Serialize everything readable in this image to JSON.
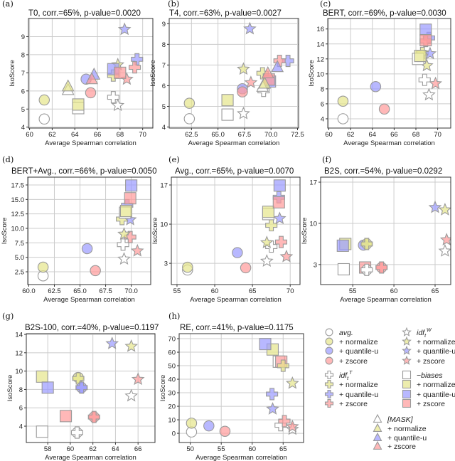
{
  "colors": {
    "none": "#ffffff",
    "normalize": "#e6e68a",
    "quantile-u": "#9a9aff",
    "zscore": "#ff9a9a",
    "edge": "#9a9a9a",
    "grid": "#cccccc"
  },
  "chart_data": [
    {
      "type": "scatter",
      "panel": "(a)",
      "title": "T0,  corr.=65%, p-value=0.0020",
      "xlabel": "Average Spearman correlation",
      "ylabel": "IsoScore",
      "xlim": [
        59.9,
        70.9
      ],
      "ylim": [
        3.95,
        10.0
      ],
      "xticks": [
        "60",
        "62",
        "64",
        "66",
        "68",
        "70"
      ],
      "yticks": [
        "4",
        "5",
        "6",
        "7",
        "8",
        "9"
      ],
      "grid": true,
      "points": [
        [
          "circle",
          "none",
          61.3,
          4.45
        ],
        [
          "circle",
          "normalize",
          61.3,
          5.5
        ],
        [
          "circle",
          "quantile-u",
          65,
          6.65
        ],
        [
          "circle",
          "zscore",
          65.4,
          5.9
        ],
        [
          "plus",
          "none",
          67.4,
          5.65
        ],
        [
          "plus",
          "normalize",
          67.4,
          6.85
        ],
        [
          "plus",
          "quantile-u",
          69.5,
          7.75
        ],
        [
          "plus",
          "zscore",
          69.3,
          7.3
        ],
        [
          "star",
          "none",
          67.8,
          5.2
        ],
        [
          "star",
          "normalize",
          67.8,
          7.45
        ],
        [
          "star",
          "quantile-u",
          68.4,
          9.4
        ],
        [
          "star",
          "zscore",
          68.6,
          6.65
        ],
        [
          "square",
          "none",
          64.3,
          5.05
        ],
        [
          "square",
          "normalize",
          64.3,
          5.25
        ],
        [
          "square",
          "quantile-u",
          67.4,
          7.2
        ],
        [
          "square",
          "zscore",
          68,
          7.0
        ],
        [
          "triangle",
          "none",
          63.4,
          6.05
        ],
        [
          "triangle",
          "normalize",
          63.4,
          6.25
        ],
        [
          "triangle",
          "quantile-u",
          65.7,
          6.9
        ],
        [
          "triangle",
          "zscore",
          65.5,
          6.65
        ]
      ]
    },
    {
      "type": "scatter",
      "panel": "(b)",
      "title": "T4,  corr.=63%, p-value=0.0027",
      "xlabel": "Average Spearman correlation",
      "ylabel": "IsoScore",
      "xlim": [
        60.4,
        72.6
      ],
      "ylim": [
        3.95,
        9.25
      ],
      "xticks": [
        "62.5",
        "65.0",
        "67.5",
        "70.0",
        "72.5"
      ],
      "yticks": [
        "4",
        "5",
        "6",
        "7",
        "8",
        "9"
      ],
      "grid": true,
      "points": [
        [
          "circle",
          "none",
          62.3,
          4.4
        ],
        [
          "circle",
          "normalize",
          62.3,
          5.15
        ],
        [
          "circle",
          "quantile-u",
          67.3,
          5.85
        ],
        [
          "circle",
          "zscore",
          67.3,
          5.7
        ],
        [
          "plus",
          "none",
          69.3,
          5.75
        ],
        [
          "plus",
          "normalize",
          69.2,
          6.6
        ],
        [
          "plus",
          "quantile-u",
          71.6,
          7.2
        ],
        [
          "plus",
          "zscore",
          70.8,
          7.2
        ],
        [
          "star",
          "none",
          67.4,
          4.65
        ],
        [
          "star",
          "normalize",
          67.4,
          6.8
        ],
        [
          "star",
          "quantile-u",
          68.0,
          8.75
        ],
        [
          "star",
          "zscore",
          68.1,
          6.15
        ],
        [
          "square",
          "none",
          65.9,
          4.6
        ],
        [
          "square",
          "normalize",
          65.9,
          5.3
        ],
        [
          "square",
          "quantile-u",
          69.9,
          6.2
        ],
        [
          "square",
          "zscore",
          69.8,
          6.3
        ],
        [
          "triangle",
          "none",
          69.2,
          5.95
        ],
        [
          "triangle",
          "normalize",
          69.4,
          6.1
        ],
        [
          "triangle",
          "quantile-u",
          70.6,
          6.9
        ],
        [
          "triangle",
          "zscore",
          69.7,
          6.6
        ]
      ]
    },
    {
      "type": "scatter",
      "panel": "(c)",
      "title": "BERT,  corr.=69%, p-value=0.0030",
      "xlabel": "Average Spearman correlation",
      "ylabel": "IsoScore",
      "xlim": [
        59.9,
        71.2
      ],
      "ylim": [
        2.76,
        17.4
      ],
      "xticks": [
        "60",
        "62",
        "64",
        "66",
        "68",
        "70"
      ],
      "yticks": [
        "4",
        "6",
        "8",
        "10",
        "12",
        "14",
        "16"
      ],
      "grid": true,
      "points": [
        [
          "circle",
          "none",
          61.3,
          4.0
        ],
        [
          "circle",
          "normalize",
          61.3,
          6.35
        ],
        [
          "circle",
          "quantile-u",
          64.3,
          8.3
        ],
        [
          "circle",
          "zscore",
          65.1,
          5.3
        ],
        [
          "plus",
          "none",
          68.8,
          9.2
        ],
        [
          "plus",
          "normalize",
          68.6,
          12.8
        ],
        [
          "plus",
          "quantile-u",
          69.2,
          14.8
        ],
        [
          "plus",
          "zscore",
          68.9,
          14.4
        ],
        [
          "star",
          "none",
          69.2,
          7.2
        ],
        [
          "star",
          "normalize",
          69.0,
          11.1
        ],
        [
          "star",
          "quantile-u",
          69.3,
          12.7
        ],
        [
          "star",
          "zscore",
          69.8,
          8.7
        ],
        [
          "square",
          "none",
          68.2,
          12.0
        ],
        [
          "square",
          "normalize",
          68.4,
          12.4
        ],
        [
          "square",
          "quantile-u",
          68.9,
          15.9
        ],
        [
          "square",
          "zscore",
          68.9,
          14.5
        ]
      ]
    },
    {
      "type": "scatter",
      "panel": "(d)",
      "title": "BERT+Avg.,  corr.=66%, p-value=0.0050",
      "xlabel": "Average Spearman correlation",
      "ylabel": "IsoScore",
      "xlim": [
        59.9,
        71.9
      ],
      "ylim": [
        0.29,
        18.85
      ],
      "xticks": [
        "60.0",
        "62.5",
        "65.0",
        "67.5",
        "70.0"
      ],
      "yticks": [
        "2.5",
        "5.0",
        "7.5",
        "10.0",
        "12.5",
        "15.0",
        "17.5"
      ],
      "grid": true,
      "points": [
        [
          "circle",
          "none",
          61.4,
          1.8
        ],
        [
          "circle",
          "normalize",
          61.4,
          3.3
        ],
        [
          "circle",
          "quantile-u",
          65.7,
          6.5
        ],
        [
          "circle",
          "zscore",
          66.5,
          2.7
        ],
        [
          "plus",
          "none",
          69.2,
          7.2
        ],
        [
          "plus",
          "normalize",
          69.1,
          11.6
        ],
        [
          "plus",
          "quantile-u",
          69.6,
          14.0
        ],
        [
          "plus",
          "zscore",
          69.9,
          8.5
        ],
        [
          "star",
          "none",
          69.3,
          4.7
        ],
        [
          "star",
          "normalize",
          69.3,
          9.0
        ],
        [
          "star",
          "quantile-u",
          69.9,
          11.5
        ],
        [
          "star",
          "zscore",
          70.6,
          6.1
        ],
        [
          "square",
          "none",
          69.4,
          12.7
        ],
        [
          "square",
          "normalize",
          69.5,
          13.0
        ],
        [
          "square",
          "quantile-u",
          70.0,
          17.4
        ],
        [
          "square",
          "zscore",
          69.9,
          15.2
        ]
      ]
    },
    {
      "type": "scatter",
      "panel": "(e)",
      "title": "Avg.,  corr.=65%, p-value=0.0070",
      "xlabel": "Average Spearman correlation",
      "ylabel": "IsoScore",
      "xlim": [
        54.25,
        71.3
      ],
      "ylim": [
        -0.8,
        18.4
      ],
      "xticks": [
        "55",
        "60",
        "65",
        "70"
      ],
      "yticks": [
        "3",
        "10",
        "17"
      ],
      "grid": true,
      "points": [
        [
          "circle",
          "none",
          56.4,
          1.8
        ],
        [
          "circle",
          "normalize",
          56.4,
          2.3
        ],
        [
          "circle",
          "quantile-u",
          63,
          4.9
        ],
        [
          "circle",
          "zscore",
          64.1,
          2.2
        ],
        [
          "plus",
          "none",
          67.5,
          6.0
        ],
        [
          "plus",
          "normalize",
          67.5,
          9.8
        ],
        [
          "plus",
          "quantile-u",
          68.5,
          14.8
        ],
        [
          "plus",
          "zscore",
          68.8,
          6.8
        ],
        [
          "star",
          "none",
          66.9,
          3.4
        ],
        [
          "star",
          "normalize",
          66.9,
          6.7
        ],
        [
          "star",
          "quantile-u",
          68.6,
          11.0
        ],
        [
          "star",
          "zscore",
          69.5,
          4.2
        ],
        [
          "square",
          "none",
          67.1,
          11.8
        ],
        [
          "square",
          "normalize",
          67.1,
          12.2
        ],
        [
          "square",
          "quantile-u",
          68.6,
          16.9
        ],
        [
          "square",
          "zscore",
          68.5,
          13.9
        ]
      ]
    },
    {
      "type": "scatter",
      "panel": "(f)",
      "title": "B2S,  corr.=54%, p-value=0.0292",
      "xlabel": "Average Spearman correlation",
      "ylabel": "IsoScore",
      "xlim": [
        51.1,
        66.9
      ],
      "ylim": [
        -0.4,
        17.85
      ],
      "xticks": [
        "55",
        "60",
        "65"
      ],
      "yticks": [
        "3",
        "10",
        "17"
      ],
      "grid": true,
      "points": [
        [
          "square",
          "none",
          53.9,
          2.2
        ],
        [
          "square",
          "normalize",
          54.1,
          6.5
        ],
        [
          "square",
          "quantile-u",
          53.8,
          6.2
        ],
        [
          "square",
          "zscore",
          56.5,
          2.5
        ],
        [
          "circle",
          "quantile-u",
          56.3,
          6.3
        ],
        [
          "circle",
          "normalize",
          56.7,
          6.5
        ],
        [
          "plus",
          "normalize",
          56.7,
          6.5
        ],
        [
          "circle",
          "none",
          56.7,
          2.1
        ],
        [
          "plus",
          "none",
          56.7,
          2.1
        ],
        [
          "circle",
          "zscore",
          58.5,
          2.5
        ],
        [
          "plus",
          "zscore",
          58.5,
          2.5
        ],
        [
          "star",
          "quantile-u",
          65.0,
          12.7
        ],
        [
          "star",
          "normalize",
          66.2,
          12.3
        ],
        [
          "star",
          "zscore",
          66.4,
          7.2
        ],
        [
          "star",
          "none",
          66.2,
          5.3
        ]
      ]
    },
    {
      "type": "scatter",
      "panel": "(g)",
      "title": "B2S-100,  corr.=40%, p-value=0.1197",
      "xlabel": "Average Spearman correlation",
      "ylabel": "IsoScore",
      "xlim": [
        56.1,
        67.5
      ],
      "ylim": [
        2.22,
        14.08
      ],
      "xticks": [
        "58",
        "60",
        "62",
        "64",
        "66"
      ],
      "yticks": [
        "4",
        "6",
        "8",
        "10",
        "12",
        "14"
      ],
      "grid": true,
      "points": [
        [
          "square",
          "none",
          57.5,
          3.4
        ],
        [
          "square",
          "normalize",
          57.5,
          9.4
        ],
        [
          "square",
          "quantile-u",
          58.0,
          8.2
        ],
        [
          "square",
          "zscore",
          59.6,
          5.1
        ],
        [
          "circle",
          "none",
          60.6,
          3.3
        ],
        [
          "plus",
          "none",
          60.6,
          3.3
        ],
        [
          "circle",
          "normalize",
          60.7,
          9.3
        ],
        [
          "plus",
          "normalize",
          60.7,
          9.2
        ],
        [
          "circle",
          "quantile-u",
          61.0,
          8.2
        ],
        [
          "plus",
          "quantile-u",
          61.0,
          8.2
        ],
        [
          "circle",
          "zscore",
          62.1,
          5.0
        ],
        [
          "plus",
          "zscore",
          62.1,
          5.0
        ],
        [
          "star",
          "none",
          65.4,
          7.3
        ],
        [
          "star",
          "normalize",
          65.4,
          12.7
        ],
        [
          "star",
          "quantile-u",
          63.7,
          13.0
        ],
        [
          "star",
          "zscore",
          66.0,
          9.1
        ]
      ]
    },
    {
      "type": "scatter",
      "panel": "(h)",
      "title": "RE,  corr.=41%, p-value=0.1175",
      "xlabel": "Average Spearman correlation",
      "ylabel": "IsoScore",
      "xlim": [
        48.2,
        68.3
      ],
      "ylim": [
        -6.8,
        73.7
      ],
      "xticks": [
        "50",
        "55",
        "60",
        "65"
      ],
      "yticks": [
        "0",
        "10",
        "20",
        "30",
        "40",
        "50",
        "60",
        "70"
      ],
      "grid": true,
      "points": [
        [
          "circle",
          "none",
          50.2,
          1
        ],
        [
          "circle",
          "normalize",
          50.2,
          7.5
        ],
        [
          "circle",
          "quantile-u",
          53,
          5.5
        ],
        [
          "circle",
          "zscore",
          55.6,
          1.5
        ],
        [
          "square",
          "none",
          64.3,
          53
        ],
        [
          "square",
          "normalize",
          63.3,
          62
        ],
        [
          "square",
          "quantile-u",
          62.1,
          66
        ],
        [
          "square",
          "zscore",
          64.7,
          53
        ],
        [
          "plus",
          "none",
          64.6,
          6
        ],
        [
          "plus",
          "normalize",
          65.0,
          50
        ],
        [
          "plus",
          "quantile-u",
          63.2,
          29
        ],
        [
          "plus",
          "zscore",
          65.2,
          9
        ],
        [
          "star",
          "none",
          66.5,
          3
        ],
        [
          "star",
          "normalize",
          66.5,
          37
        ],
        [
          "star",
          "quantile-u",
          63.3,
          18
        ],
        [
          "star",
          "zscore",
          66.5,
          5
        ]
      ]
    }
  ],
  "legend": [
    {
      "shape": "circle",
      "variant": "none",
      "label": "avg.",
      "italic": true
    },
    {
      "shape": "circle",
      "variant": "normalize",
      "label": "+ normalize"
    },
    {
      "shape": "circle",
      "variant": "quantile-u",
      "label": "+ quantile-u"
    },
    {
      "shape": "circle",
      "variant": "zscore",
      "label": "+ zscore"
    },
    {
      "shape": "star",
      "variant": "none",
      "label": "idf",
      "sup": "W",
      "sub": "t",
      "italic": true
    },
    {
      "shape": "star",
      "variant": "normalize",
      "label": "+ normalize"
    },
    {
      "shape": "star",
      "variant": "quantile-u",
      "label": "+ quantile-u"
    },
    {
      "shape": "star",
      "variant": "zscore",
      "label": "+ zscore"
    },
    {
      "shape": "plus",
      "variant": "none",
      "label": "idf",
      "sup": "T",
      "sub": "t",
      "italic": true
    },
    {
      "shape": "plus",
      "variant": "normalize",
      "label": "+ normalize"
    },
    {
      "shape": "plus",
      "variant": "quantile-u",
      "label": "+ quantile-u"
    },
    {
      "shape": "plus",
      "variant": "zscore",
      "label": "+ zscore"
    },
    {
      "shape": "square",
      "variant": "none",
      "label": "−biases",
      "italic": true
    },
    {
      "shape": "square",
      "variant": "normalize",
      "label": "+ normalize"
    },
    {
      "shape": "square",
      "variant": "quantile-u",
      "label": "+ quantile-u"
    },
    {
      "shape": "square",
      "variant": "zscore",
      "label": "+ zscore"
    },
    {
      "shape": "triangle",
      "variant": "none",
      "label": "[MASK]",
      "italic": true
    },
    {
      "shape": "triangle",
      "variant": "normalize",
      "label": "+ normalize"
    },
    {
      "shape": "triangle",
      "variant": "quantile-u",
      "label": "+ quantile-u"
    },
    {
      "shape": "triangle",
      "variant": "zscore",
      "label": "+ zscore"
    }
  ]
}
